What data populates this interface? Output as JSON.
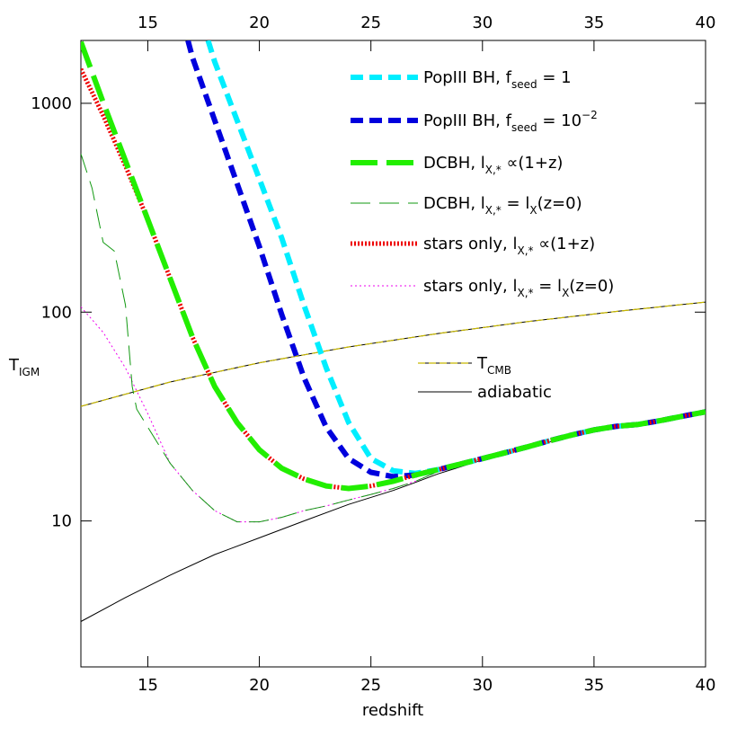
{
  "chart_data": {
    "type": "line",
    "x_label": "redshift",
    "y_label": [
      {
        "text": "T"
      },
      {
        "text": "IGM",
        "sub": true
      }
    ],
    "log_y": true,
    "xlim": [
      12,
      40
    ],
    "ylim": [
      2,
      2000
    ],
    "xticks": [
      15,
      20,
      25,
      30,
      35,
      40
    ],
    "yticks": [
      10,
      100,
      1000
    ],
    "series": [
      {
        "name": [
          {
            "text": "PopIII BH, f"
          },
          {
            "text": "seed",
            "sub": true
          },
          {
            "text": " = 1"
          }
        ],
        "color": "#00eeff",
        "x": [
          17.7,
          18,
          19,
          20,
          21,
          22,
          23,
          24,
          25,
          26,
          27,
          28,
          29,
          30,
          31,
          32,
          33,
          34,
          35,
          36,
          37,
          38,
          39,
          40
        ],
        "values": [
          2000,
          1580,
          828,
          434,
          227,
          108,
          54,
          29.6,
          19.9,
          17.4,
          16.9,
          17.6,
          18.7,
          19.9,
          21.2,
          22.6,
          24.2,
          25.8,
          27.3,
          28.4,
          29.0,
          30.3,
          31.8,
          33.3
        ]
      },
      {
        "name": [
          {
            "text": "PopIII BH, f"
          },
          {
            "text": "seed",
            "sub": true
          },
          {
            "text": " = 10"
          },
          {
            "text": "−2",
            "sup": true
          }
        ],
        "color": "#0000dd",
        "x": [
          16.8,
          17,
          18,
          19,
          20,
          21,
          22,
          23,
          24,
          25,
          26,
          27,
          28,
          29,
          30,
          31,
          32,
          33,
          34,
          35,
          36,
          37,
          38,
          39,
          40
        ],
        "values": [
          2000,
          1660,
          828,
          413,
          206,
          97.5,
          48.6,
          28.1,
          19.9,
          17.1,
          16.3,
          16.6,
          17.6,
          18.7,
          19.9,
          21.2,
          22.6,
          24.2,
          25.8,
          27.3,
          28.4,
          29.0,
          30.3,
          31.8,
          33.3
        ]
      },
      {
        "name": [
          {
            "text": "DCBH, l"
          },
          {
            "text": "X,*",
            "sub": true
          },
          {
            "text": " ∝(1+z)"
          }
        ],
        "color": "#22ee00",
        "x": [
          12,
          13,
          14,
          15,
          16,
          17,
          18,
          19,
          20,
          21,
          22,
          23,
          24,
          25,
          26,
          27,
          28,
          29,
          30,
          31,
          32,
          33,
          34,
          35,
          36,
          37,
          38,
          39,
          40
        ],
        "values": [
          1967,
          1010,
          530,
          277,
          145,
          76,
          44,
          29.6,
          21.9,
          17.9,
          15.9,
          14.7,
          14.3,
          14.7,
          15.5,
          16.6,
          17.6,
          18.7,
          19.9,
          21.2,
          22.6,
          24.2,
          25.8,
          27.3,
          28.4,
          29.0,
          30.3,
          31.8,
          33.3
        ]
      },
      {
        "name": [
          {
            "text": "DCBH, l"
          },
          {
            "text": "X,*",
            "sub": true
          },
          {
            "text": " = l"
          },
          {
            "text": "X",
            "sub": true
          },
          {
            "text": "(z=0)"
          }
        ],
        "color": "#119911",
        "x": [
          12,
          12.5,
          13,
          13.5,
          14,
          14.3,
          14.5,
          15,
          16,
          17,
          18,
          19,
          20,
          21,
          22,
          23,
          24,
          25,
          26,
          27,
          28,
          30,
          32,
          34,
          36,
          38,
          40
        ],
        "values": [
          573,
          393,
          216,
          196,
          108,
          44,
          34.3,
          28.1,
          18.9,
          14.0,
          11.2,
          9.9,
          9.9,
          10.4,
          11.2,
          11.8,
          12.6,
          13.4,
          14.3,
          15.5,
          17.2,
          19.9,
          22.6,
          25.8,
          28.4,
          30.3,
          33.3
        ]
      },
      {
        "name": [
          {
            "text": "stars only, l"
          },
          {
            "text": "X,*",
            "sub": true
          },
          {
            "text": " ∝(1+z)"
          }
        ],
        "color": "#ee0000",
        "x": [
          12,
          13,
          14,
          15,
          16,
          17,
          18,
          19,
          20,
          21,
          22,
          23,
          24,
          25,
          26,
          27,
          28,
          29,
          30,
          31,
          32,
          33,
          34,
          35,
          36,
          37,
          38,
          39,
          40
        ],
        "values": [
          1459,
          874,
          501,
          277,
          145,
          76,
          44,
          29.6,
          21.9,
          17.9,
          15.9,
          14.7,
          14.3,
          14.7,
          15.5,
          16.6,
          17.6,
          18.7,
          19.9,
          21.2,
          22.6,
          24.2,
          25.8,
          27.3,
          28.4,
          29.0,
          30.3,
          31.8,
          33.3
        ]
      },
      {
        "name": [
          {
            "text": "stars only, l"
          },
          {
            "text": "X,*",
            "sub": true
          },
          {
            "text": " = l"
          },
          {
            "text": "X",
            "sub": true
          },
          {
            "text": "(z=0)"
          }
        ],
        "color": "#ee00ee",
        "x": [
          12,
          13,
          14,
          15,
          16,
          17,
          18,
          19,
          20,
          21,
          22,
          23,
          24,
          25,
          26,
          27,
          28,
          30,
          32,
          34,
          36,
          38,
          40
        ],
        "values": [
          106,
          80,
          54,
          32.6,
          18.9,
          14.0,
          11.2,
          9.9,
          9.9,
          10.4,
          11.2,
          11.8,
          12.6,
          13.4,
          14.3,
          15.5,
          17.2,
          19.9,
          22.6,
          25.8,
          28.4,
          30.3,
          33.3
        ]
      },
      {
        "name": [
          {
            "text": "T"
          },
          {
            "text": "CMB",
            "sub": true
          }
        ],
        "color": "#c8b800",
        "x": [
          12,
          16,
          20,
          24,
          28,
          32,
          36,
          40
        ],
        "values": [
          35.4,
          46.3,
          57.2,
          68.1,
          79.0,
          90.0,
          100.8,
          111.7
        ]
      },
      {
        "name": [
          {
            "text": "adiabatic"
          }
        ],
        "color": "#000000",
        "x": [
          12,
          14,
          16,
          18,
          20,
          22,
          24,
          26,
          27,
          28,
          30,
          32,
          34,
          36,
          38,
          40
        ],
        "values": [
          3.3,
          4.3,
          5.5,
          6.9,
          8.3,
          10.0,
          12.0,
          14.0,
          15.3,
          16.8,
          19.6,
          22.4,
          25.5,
          28.2,
          30.2,
          33.3
        ]
      }
    ]
  }
}
